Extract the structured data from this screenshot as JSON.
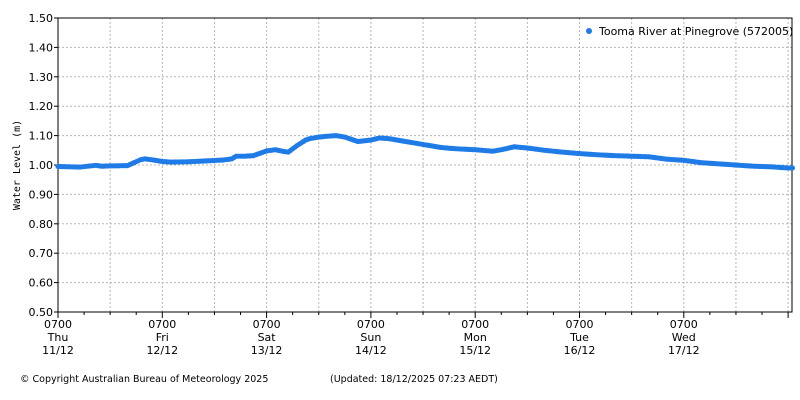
{
  "chart_data": {
    "type": "scatter",
    "ylabel": "Water Level (m)",
    "ylim": [
      0.5,
      1.5
    ],
    "xlim": [
      0,
      169
    ],
    "x_unit": "hours since 0700 Thu 11/12",
    "yticks": [
      "0.50",
      "0.60",
      "0.70",
      "0.80",
      "0.90",
      "1.00",
      "1.10",
      "1.20",
      "1.30",
      "1.40",
      "1.50"
    ],
    "xticks": [
      {
        "time": "0700",
        "day": "Thu",
        "date": "11/12"
      },
      {
        "time": "0700",
        "day": "Fri",
        "date": "12/12"
      },
      {
        "time": "0700",
        "day": "Sat",
        "date": "13/12"
      },
      {
        "time": "0700",
        "day": "Sun",
        "date": "14/12"
      },
      {
        "time": "0700",
        "day": "Mon",
        "date": "15/12"
      },
      {
        "time": "0700",
        "day": "Tue",
        "date": "16/12"
      },
      {
        "time": "0700",
        "day": "Wed",
        "date": "17/12"
      }
    ],
    "grid": true,
    "legend_position": "top-right",
    "series": [
      {
        "name": "Tooma River at Pinegrove (572005)",
        "color": "#1f7be6",
        "x": [
          0,
          5,
          8.7,
          10,
          12,
          16,
          19,
          20,
          22,
          24,
          26,
          30,
          34,
          38,
          40,
          41,
          43,
          45,
          48,
          50,
          52,
          53,
          55,
          57,
          58,
          60,
          62,
          64,
          66,
          68,
          69,
          72,
          74,
          76,
          80,
          84,
          88,
          90,
          92,
          96,
          100,
          102,
          105,
          108,
          112,
          116,
          120,
          124,
          128,
          132,
          136,
          140,
          144,
          148,
          152,
          156,
          160,
          164,
          168,
          169
        ],
        "y": [
          0.995,
          0.993,
          0.999,
          0.996,
          0.997,
          0.998,
          1.018,
          1.021,
          1.017,
          1.012,
          1.01,
          1.011,
          1.014,
          1.017,
          1.021,
          1.03,
          1.03,
          1.032,
          1.048,
          1.052,
          1.046,
          1.044,
          1.066,
          1.085,
          1.09,
          1.095,
          1.098,
          1.1,
          1.095,
          1.085,
          1.08,
          1.085,
          1.092,
          1.09,
          1.08,
          1.07,
          1.06,
          1.057,
          1.055,
          1.052,
          1.047,
          1.052,
          1.062,
          1.058,
          1.05,
          1.044,
          1.039,
          1.035,
          1.032,
          1.03,
          1.028,
          1.02,
          1.016,
          1.008,
          1.004,
          1.0,
          0.996,
          0.994,
          0.99,
          0.99
        ]
      }
    ]
  },
  "footer": {
    "copyright": "© Copyright Australian Bureau of Meteorology 2025",
    "updated": "(Updated: 18/12/2025 07:23 AEDT)"
  }
}
